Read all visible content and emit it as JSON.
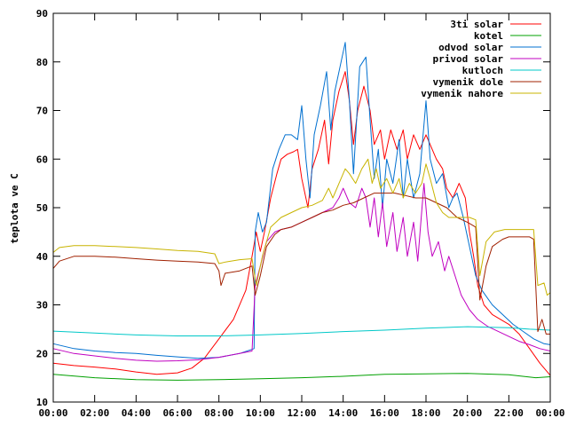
{
  "chart_data": {
    "type": "line",
    "ylabel": "teplota ve C",
    "xlabel": "",
    "title": "",
    "xlim": [
      0,
      24
    ],
    "ylim": [
      10,
      90
    ],
    "x_ticks": [
      "00:00",
      "02:00",
      "04:00",
      "06:00",
      "08:00",
      "10:00",
      "12:00",
      "14:00",
      "16:00",
      "18:00",
      "20:00",
      "22:00",
      "00:00"
    ],
    "y_ticks": [
      10,
      20,
      30,
      40,
      50,
      60,
      70,
      80,
      90
    ],
    "grid": false,
    "legend_position": "top-right",
    "series": [
      {
        "name": "3ti solar",
        "color": "#ff0000",
        "points": [
          [
            0,
            18
          ],
          [
            1,
            17.5
          ],
          [
            2,
            17.2
          ],
          [
            3,
            16.8
          ],
          [
            4,
            16.2
          ],
          [
            5,
            15.7
          ],
          [
            6,
            16
          ],
          [
            6.7,
            17
          ],
          [
            7.3,
            19
          ],
          [
            8,
            23
          ],
          [
            8.7,
            27
          ],
          [
            9.3,
            33
          ],
          [
            9.6,
            40
          ],
          [
            9.8,
            45
          ],
          [
            10,
            41
          ],
          [
            10.2,
            45
          ],
          [
            10.5,
            52
          ],
          [
            10.8,
            57
          ],
          [
            11,
            60
          ],
          [
            11.3,
            61
          ],
          [
            11.6,
            61.5
          ],
          [
            11.8,
            62
          ],
          [
            12,
            56
          ],
          [
            12.3,
            50
          ],
          [
            12.5,
            58
          ],
          [
            12.8,
            62
          ],
          [
            13.1,
            68
          ],
          [
            13.3,
            59
          ],
          [
            13.5,
            68
          ],
          [
            13.8,
            74
          ],
          [
            14.1,
            78
          ],
          [
            14.3,
            72
          ],
          [
            14.5,
            63
          ],
          [
            14.7,
            70
          ],
          [
            15,
            75
          ],
          [
            15.3,
            70
          ],
          [
            15.5,
            63
          ],
          [
            15.8,
            66
          ],
          [
            16,
            60
          ],
          [
            16.3,
            66
          ],
          [
            16.6,
            62
          ],
          [
            16.9,
            66
          ],
          [
            17.1,
            60
          ],
          [
            17.4,
            65
          ],
          [
            17.7,
            62
          ],
          [
            18,
            65
          ],
          [
            18.3,
            62
          ],
          [
            18.5,
            60
          ],
          [
            18.8,
            58
          ],
          [
            19,
            54
          ],
          [
            19.3,
            52
          ],
          [
            19.6,
            55
          ],
          [
            19.9,
            52
          ],
          [
            20.1,
            45
          ],
          [
            20.3,
            40
          ],
          [
            20.5,
            34
          ],
          [
            20.8,
            30
          ],
          [
            21.2,
            28
          ],
          [
            21.6,
            27
          ],
          [
            22,
            26
          ],
          [
            22.5,
            24
          ],
          [
            23,
            21
          ],
          [
            23.5,
            18
          ],
          [
            24,
            15.5
          ]
        ]
      },
      {
        "name": "kotel",
        "color": "#00a000",
        "points": [
          [
            0,
            15.7
          ],
          [
            2,
            15
          ],
          [
            4,
            14.6
          ],
          [
            6,
            14.5
          ],
          [
            8,
            14.6
          ],
          [
            10,
            14.8
          ],
          [
            12,
            15
          ],
          [
            14,
            15.3
          ],
          [
            16,
            15.7
          ],
          [
            18,
            15.8
          ],
          [
            20,
            15.9
          ],
          [
            22,
            15.6
          ],
          [
            23.3,
            15
          ],
          [
            24,
            15.2
          ]
        ]
      },
      {
        "name": "odvod solar",
        "color": "#0070d0",
        "points": [
          [
            0,
            22
          ],
          [
            1,
            21
          ],
          [
            2,
            20.5
          ],
          [
            3,
            20.2
          ],
          [
            4,
            20
          ],
          [
            5,
            19.6
          ],
          [
            6,
            19.3
          ],
          [
            7,
            19
          ],
          [
            8,
            19.2
          ],
          [
            9,
            20
          ],
          [
            9.7,
            21
          ],
          [
            9.75,
            45
          ],
          [
            9.9,
            49
          ],
          [
            10.1,
            45
          ],
          [
            10.3,
            47
          ],
          [
            10.6,
            58
          ],
          [
            10.9,
            62
          ],
          [
            11.2,
            65
          ],
          [
            11.5,
            65
          ],
          [
            11.8,
            64
          ],
          [
            12,
            71
          ],
          [
            12.2,
            60
          ],
          [
            12.4,
            52
          ],
          [
            12.6,
            65
          ],
          [
            12.9,
            71
          ],
          [
            13.2,
            78
          ],
          [
            13.4,
            66
          ],
          [
            13.6,
            74
          ],
          [
            13.9,
            80
          ],
          [
            14.1,
            84
          ],
          [
            14.3,
            72
          ],
          [
            14.5,
            57
          ],
          [
            14.8,
            79
          ],
          [
            15.1,
            81
          ],
          [
            15.3,
            68
          ],
          [
            15.5,
            56
          ],
          [
            15.7,
            62
          ],
          [
            15.9,
            50
          ],
          [
            16.1,
            60
          ],
          [
            16.4,
            55
          ],
          [
            16.7,
            64
          ],
          [
            16.9,
            52
          ],
          [
            17.1,
            60
          ],
          [
            17.4,
            52
          ],
          [
            17.7,
            57
          ],
          [
            18,
            72
          ],
          [
            18.2,
            60
          ],
          [
            18.5,
            55
          ],
          [
            18.8,
            57
          ],
          [
            19.1,
            50
          ],
          [
            19.3,
            52
          ],
          [
            19.5,
            53
          ],
          [
            19.8,
            48
          ],
          [
            20.1,
            42
          ],
          [
            20.4,
            36
          ],
          [
            20.7,
            33
          ],
          [
            21.2,
            30
          ],
          [
            21.7,
            28
          ],
          [
            22.2,
            26
          ],
          [
            22.7,
            24.5
          ],
          [
            23.2,
            23
          ],
          [
            23.7,
            22
          ],
          [
            24,
            21.8
          ]
        ]
      },
      {
        "name": "privod solar",
        "color": "#c000c0",
        "points": [
          [
            0,
            21
          ],
          [
            1,
            20
          ],
          [
            2,
            19.5
          ],
          [
            3,
            19
          ],
          [
            4,
            18.6
          ],
          [
            5,
            18.4
          ],
          [
            6,
            18.5
          ],
          [
            7,
            18.7
          ],
          [
            8,
            19.2
          ],
          [
            9,
            20
          ],
          [
            9.6,
            20.5
          ],
          [
            9.75,
            34
          ],
          [
            10,
            38
          ],
          [
            10.3,
            43
          ],
          [
            10.7,
            45
          ],
          [
            11,
            45.5
          ],
          [
            11.5,
            46
          ],
          [
            12,
            47
          ],
          [
            12.5,
            48
          ],
          [
            13,
            49
          ],
          [
            13.5,
            50
          ],
          [
            13.8,
            52
          ],
          [
            14,
            54
          ],
          [
            14.3,
            51
          ],
          [
            14.6,
            50
          ],
          [
            14.9,
            54
          ],
          [
            15.1,
            52
          ],
          [
            15.3,
            46
          ],
          [
            15.5,
            52
          ],
          [
            15.7,
            44
          ],
          [
            15.9,
            51
          ],
          [
            16.1,
            42
          ],
          [
            16.4,
            49
          ],
          [
            16.6,
            41
          ],
          [
            16.9,
            48
          ],
          [
            17.1,
            40
          ],
          [
            17.4,
            47
          ],
          [
            17.6,
            39
          ],
          [
            17.9,
            55
          ],
          [
            18.1,
            45
          ],
          [
            18.3,
            40
          ],
          [
            18.6,
            43
          ],
          [
            18.9,
            37
          ],
          [
            19.1,
            40
          ],
          [
            19.4,
            36
          ],
          [
            19.7,
            32
          ],
          [
            20.1,
            29
          ],
          [
            20.5,
            27
          ],
          [
            21,
            25.5
          ],
          [
            21.5,
            24.5
          ],
          [
            22,
            23.5
          ],
          [
            22.5,
            22.5
          ],
          [
            23,
            21.8
          ],
          [
            23.5,
            21
          ],
          [
            24,
            20.5
          ]
        ]
      },
      {
        "name": "kutloch",
        "color": "#00c8c8",
        "points": [
          [
            0,
            24.6
          ],
          [
            2,
            24.2
          ],
          [
            4,
            23.8
          ],
          [
            6,
            23.6
          ],
          [
            8,
            23.6
          ],
          [
            10,
            23.8
          ],
          [
            12,
            24.1
          ],
          [
            14,
            24.5
          ],
          [
            16,
            24.8
          ],
          [
            18,
            25.2
          ],
          [
            20,
            25.5
          ],
          [
            22,
            25.3
          ],
          [
            23,
            25
          ],
          [
            24,
            24.8
          ]
        ]
      },
      {
        "name": "vymenik dole",
        "color": "#a02000",
        "points": [
          [
            0,
            37.5
          ],
          [
            0.3,
            39
          ],
          [
            1,
            40
          ],
          [
            2,
            40
          ],
          [
            3,
            39.8
          ],
          [
            4,
            39.5
          ],
          [
            5,
            39.2
          ],
          [
            6,
            39
          ],
          [
            7,
            38.8
          ],
          [
            7.8,
            38.5
          ],
          [
            8,
            37
          ],
          [
            8.1,
            34
          ],
          [
            8.3,
            36.5
          ],
          [
            9,
            37
          ],
          [
            9.6,
            38
          ],
          [
            9.75,
            32
          ],
          [
            10,
            36
          ],
          [
            10.3,
            42
          ],
          [
            10.7,
            44.5
          ],
          [
            11,
            45.5
          ],
          [
            11.5,
            46
          ],
          [
            12,
            47
          ],
          [
            12.5,
            48
          ],
          [
            13,
            49
          ],
          [
            13.5,
            49.5
          ],
          [
            14,
            50.5
          ],
          [
            14.5,
            51
          ],
          [
            15,
            52
          ],
          [
            15.5,
            53
          ],
          [
            16,
            53
          ],
          [
            16.5,
            53
          ],
          [
            17,
            52.5
          ],
          [
            17.5,
            52
          ],
          [
            18,
            52
          ],
          [
            18.5,
            51
          ],
          [
            19,
            50
          ],
          [
            19.5,
            48
          ],
          [
            20,
            47
          ],
          [
            20.4,
            46
          ],
          [
            20.6,
            31
          ],
          [
            20.9,
            38
          ],
          [
            21.2,
            42
          ],
          [
            21.7,
            43.5
          ],
          [
            22,
            44
          ],
          [
            22.5,
            44
          ],
          [
            23,
            44
          ],
          [
            23.2,
            43.5
          ],
          [
            23.4,
            24.5
          ],
          [
            23.6,
            27
          ],
          [
            23.8,
            24
          ],
          [
            24,
            24
          ]
        ]
      },
      {
        "name": "vymenik nahore",
        "color": "#c8b400",
        "points": [
          [
            0,
            40.8
          ],
          [
            0.3,
            41.8
          ],
          [
            1,
            42.2
          ],
          [
            2,
            42.2
          ],
          [
            3,
            42
          ],
          [
            4,
            41.8
          ],
          [
            5,
            41.5
          ],
          [
            6,
            41.2
          ],
          [
            7,
            41
          ],
          [
            7.8,
            40.5
          ],
          [
            8,
            38.5
          ],
          [
            8.3,
            38.8
          ],
          [
            9,
            39.3
          ],
          [
            9.6,
            39.5
          ],
          [
            9.8,
            34
          ],
          [
            10.1,
            40
          ],
          [
            10.5,
            46
          ],
          [
            11,
            48
          ],
          [
            11.5,
            49
          ],
          [
            12,
            50
          ],
          [
            12.5,
            50.5
          ],
          [
            13,
            51.5
          ],
          [
            13.3,
            54
          ],
          [
            13.5,
            52
          ],
          [
            13.8,
            55
          ],
          [
            14.1,
            58
          ],
          [
            14.3,
            57
          ],
          [
            14.6,
            55
          ],
          [
            14.9,
            58
          ],
          [
            15.2,
            60
          ],
          [
            15.4,
            55
          ],
          [
            15.6,
            58
          ],
          [
            15.8,
            54
          ],
          [
            16.1,
            56
          ],
          [
            16.4,
            53
          ],
          [
            16.7,
            56
          ],
          [
            16.9,
            52
          ],
          [
            17.2,
            55
          ],
          [
            17.5,
            53
          ],
          [
            17.8,
            55
          ],
          [
            18,
            59
          ],
          [
            18.2,
            56
          ],
          [
            18.5,
            51
          ],
          [
            18.8,
            49
          ],
          [
            19.1,
            48
          ],
          [
            19.4,
            48
          ],
          [
            19.7,
            48
          ],
          [
            20.1,
            48
          ],
          [
            20.4,
            47.5
          ],
          [
            20.6,
            36
          ],
          [
            20.9,
            43
          ],
          [
            21.3,
            45
          ],
          [
            21.8,
            45.5
          ],
          [
            22.5,
            45.5
          ],
          [
            23.2,
            45.5
          ],
          [
            23.4,
            34
          ],
          [
            23.7,
            34.5
          ],
          [
            23.85,
            32
          ],
          [
            24,
            32.5
          ]
        ]
      }
    ]
  }
}
